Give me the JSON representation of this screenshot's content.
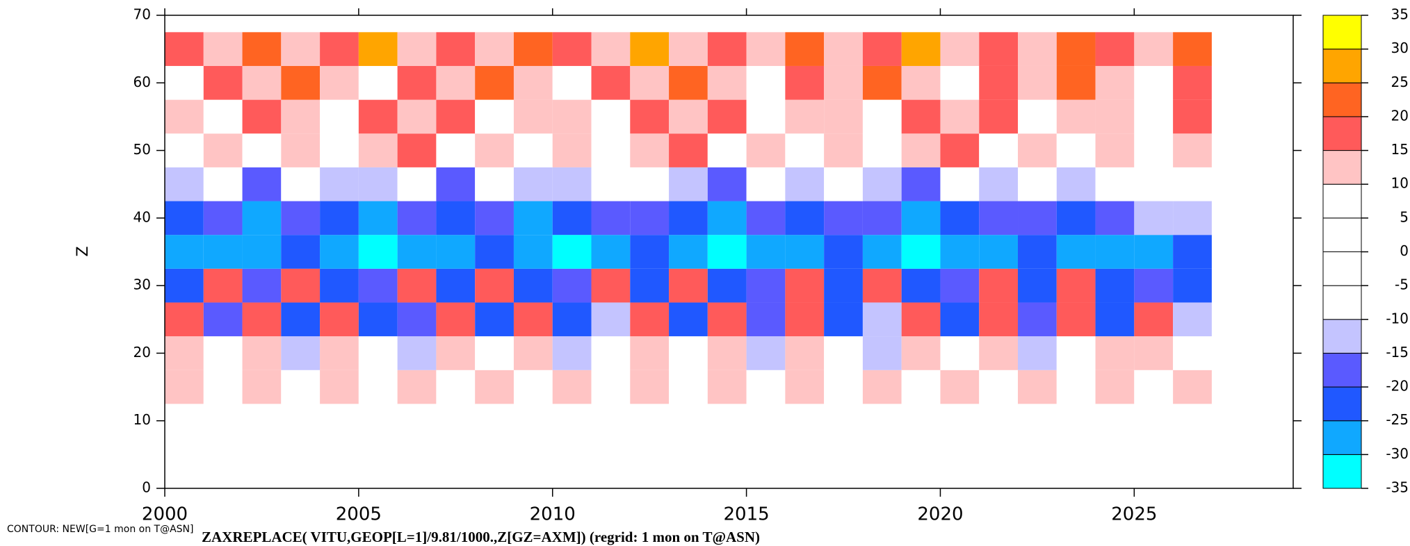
{
  "chart_data": {
    "type": "contour",
    "title": "ZAXREPLACE( VITU,GEOP[L=1]/9.81/1000.,Z[GZ=AXM]) (regrid: 1 mon on T@ASN)",
    "subtitle": "CONTOUR: NEW[G=1 mon on T@ASN]",
    "y_label": "Z",
    "xlim": [
      2000,
      2029.1
    ],
    "ylim": [
      0,
      70
    ],
    "xticks": [
      2000,
      2005,
      2010,
      2015,
      2020,
      2025
    ],
    "yticks": [
      0,
      10,
      20,
      30,
      40,
      50,
      60,
      70
    ],
    "x": [
      2000.5,
      2001.5,
      2002.5,
      2003.5,
      2004.5,
      2005.5,
      2006.5,
      2007.5,
      2008.5,
      2009.5,
      2010.5,
      2011.5,
      2012.5,
      2013.5,
      2014.5,
      2015.5,
      2016.5,
      2017.5,
      2018.5,
      2019.5,
      2020.5,
      2021.5,
      2022.5,
      2023.5,
      2024.5,
      2025.5,
      2026.5
    ],
    "z": [
      5,
      10,
      15,
      20,
      25,
      30,
      35,
      40,
      45,
      50,
      55,
      60,
      65
    ],
    "values": [
      [
        2,
        3,
        2,
        4,
        3,
        2,
        3,
        2,
        4,
        3,
        2,
        3,
        2,
        4,
        3,
        2,
        3,
        2,
        4,
        3,
        2,
        3,
        2,
        4,
        3,
        2,
        3
      ],
      [
        5,
        6,
        5,
        7,
        6,
        5,
        6,
        5,
        7,
        6,
        5,
        6,
        5,
        7,
        6,
        5,
        6,
        5,
        7,
        6,
        5,
        6,
        5,
        7,
        6,
        5,
        6
      ],
      [
        11,
        8,
        12,
        9,
        11,
        8,
        12,
        9,
        11,
        8,
        12,
        9,
        11,
        8,
        12,
        9,
        11,
        8,
        12,
        9,
        11,
        8,
        12,
        9,
        11,
        8,
        12
      ],
      [
        12,
        5,
        11,
        -11,
        12,
        5,
        -11,
        11,
        5,
        12,
        -11,
        5,
        12,
        5,
        11,
        -11,
        12,
        5,
        -11,
        11,
        5,
        12,
        -11,
        5,
        12,
        11,
        5
      ],
      [
        15,
        -20,
        18,
        -25,
        17,
        -25,
        -20,
        18,
        -25,
        17,
        -25,
        -15,
        18,
        -25,
        17,
        -20,
        18,
        -25,
        -15,
        18,
        -25,
        17,
        -20,
        18,
        -25,
        17,
        -15
      ],
      [
        -25,
        15,
        -20,
        17,
        -25,
        -20,
        16,
        -25,
        15,
        -25,
        -20,
        17,
        -25,
        15,
        -25,
        -20,
        15,
        -25,
        15,
        -25,
        -20,
        16,
        -25,
        15,
        -25,
        -20,
        -25
      ],
      [
        -30,
        -28,
        -30,
        -22,
        -30,
        -32,
        -28,
        -30,
        -22,
        -30,
        -32,
        -28,
        -22,
        -30,
        -32,
        -28,
        -30,
        -22,
        -28,
        -32,
        -30,
        -28,
        -22,
        -30,
        -28,
        -26,
        -25
      ],
      [
        -22,
        -18,
        -26,
        -16,
        -22,
        -26,
        -18,
        -22,
        -16,
        -26,
        -22,
        -18,
        -16,
        -22,
        -26,
        -18,
        -22,
        -16,
        -20,
        -26,
        -22,
        -18,
        -16,
        -22,
        -18,
        -14,
        -12
      ],
      [
        -12,
        5,
        -16,
        3,
        -12,
        -11,
        5,
        -16,
        3,
        -12,
        -11,
        5,
        3,
        -12,
        -16,
        5,
        -11,
        3,
        -12,
        -16,
        5,
        -11,
        3,
        -12,
        5,
        3,
        5
      ],
      [
        5,
        12,
        3,
        14,
        8,
        12,
        16,
        5,
        12,
        3,
        14,
        8,
        12,
        16,
        5,
        12,
        3,
        14,
        8,
        12,
        16,
        5,
        12,
        3,
        14,
        8,
        12
      ],
      [
        14,
        8,
        18,
        12,
        5,
        16,
        12,
        18,
        8,
        14,
        12,
        5,
        16,
        12,
        18,
        8,
        14,
        12,
        5,
        16,
        12,
        18,
        8,
        14,
        12,
        5,
        16
      ],
      [
        8,
        18,
        12,
        22,
        14,
        8,
        18,
        12,
        22,
        14,
        8,
        18,
        12,
        22,
        14,
        8,
        18,
        12,
        22,
        14,
        8,
        18,
        12,
        22,
        14,
        8,
        18
      ],
      [
        18,
        12,
        24,
        14,
        18,
        26,
        12,
        18,
        14,
        24,
        18,
        12,
        26,
        14,
        18,
        12,
        24,
        14,
        18,
        26,
        12,
        18,
        14,
        24,
        18,
        12,
        20
      ]
    ],
    "levels": [
      -35,
      -30,
      -25,
      -20,
      -15,
      -10,
      -5,
      0,
      5,
      10,
      15,
      20,
      25,
      30,
      35
    ],
    "colors": [
      "#00ffff",
      "#10a8ff",
      "#2058ff",
      "#5a5aff",
      "#c4c4ff",
      "#ffffff",
      "#ffffff",
      "#ffffff",
      "#ffffff",
      "#ffc4c4",
      "#ff5a5a",
      "#ff6422",
      "#ffa500",
      "#ffff00"
    ]
  }
}
